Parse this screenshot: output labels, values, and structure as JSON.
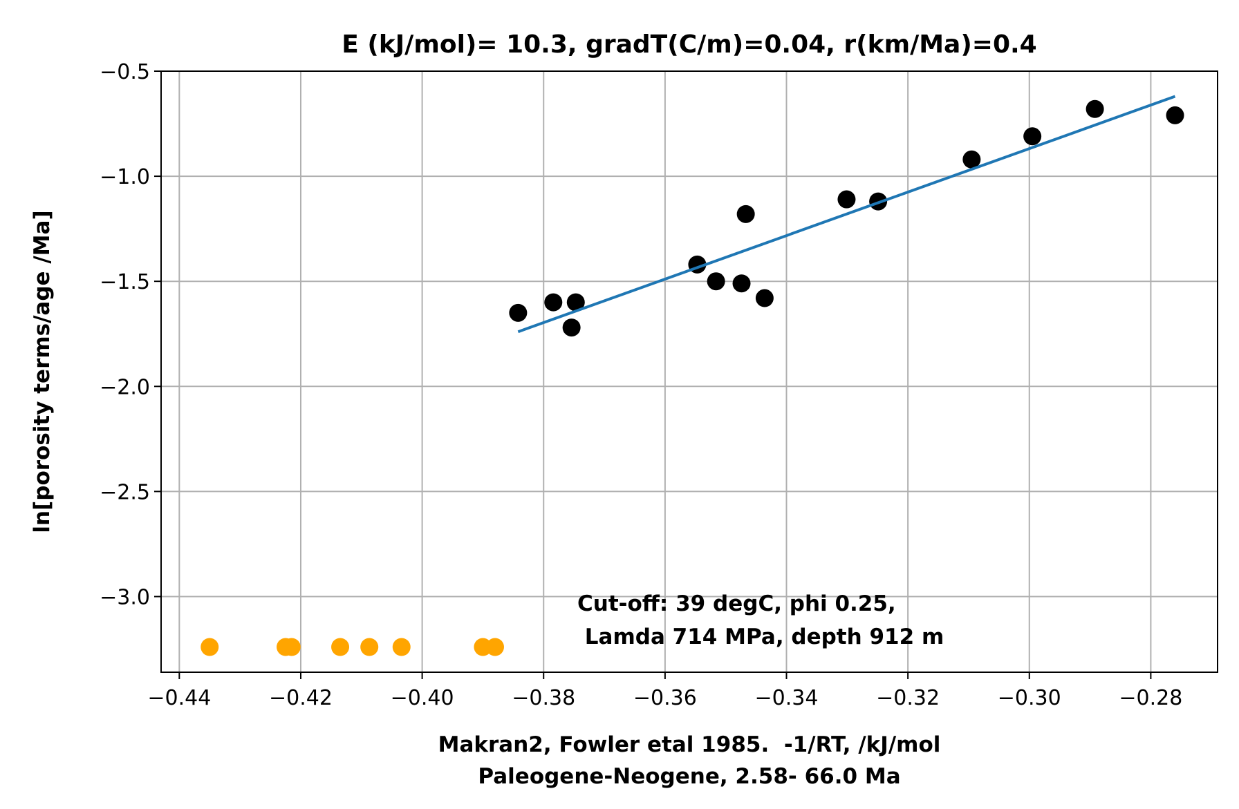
{
  "chart_data": {
    "type": "scatter",
    "title": "E (kJ/mol)= 10.3, gradT(C/m)=0.04, r(km/Ma)=0.4",
    "xlabel_line1": "Makran2, Fowler etal 1985.  -1/RT, /kJ/mol",
    "xlabel_line2": "Paleogene-Neogene, 2.58- 66.0 Ma",
    "ylabel": "ln[porosity terms/age /Ma]",
    "xlim": [
      -0.443,
      -0.269
    ],
    "ylim": [
      -3.36,
      -0.5
    ],
    "xticks": [
      -0.44,
      -0.42,
      -0.4,
      -0.38,
      -0.36,
      -0.34,
      -0.32,
      -0.3,
      -0.28
    ],
    "xtick_labels": [
      "−0.44",
      "−0.42",
      "−0.40",
      "−0.38",
      "−0.36",
      "−0.34",
      "−0.32",
      "−0.30",
      "−0.28"
    ],
    "yticks": [
      -0.5,
      -1.0,
      -1.5,
      -2.0,
      -2.5,
      -3.0
    ],
    "ytick_labels": [
      "−0.5",
      "−1.0",
      "−1.5",
      "−2.0",
      "−2.5",
      "−3.0"
    ],
    "grid": true,
    "annotation_line1": "Cut-off: 39 degC, phi 0.25,",
    "annotation_line2": " Lamda 714 MPa, depth 912 m",
    "series": [
      {
        "kind": "scatter",
        "color": "#000000",
        "points": [
          [
            -0.3842,
            -1.65
          ],
          [
            -0.3784,
            -1.6
          ],
          [
            -0.3754,
            -1.72
          ],
          [
            -0.3747,
            -1.6
          ],
          [
            -0.3547,
            -1.42
          ],
          [
            -0.3516,
            -1.5
          ],
          [
            -0.3474,
            -1.51
          ],
          [
            -0.3467,
            -1.18
          ],
          [
            -0.3436,
            -1.58
          ],
          [
            -0.3301,
            -1.11
          ],
          [
            -0.3249,
            -1.12
          ],
          [
            -0.3095,
            -0.92
          ],
          [
            -0.2995,
            -0.81
          ],
          [
            -0.2892,
            -0.68
          ],
          [
            -0.276,
            -0.71
          ]
        ]
      },
      {
        "kind": "scatter",
        "color": "#ffa500",
        "points": [
          [
            -0.435,
            -3.24
          ],
          [
            -0.4225,
            -3.24
          ],
          [
            -0.4215,
            -3.24
          ],
          [
            -0.4135,
            -3.24
          ],
          [
            -0.4087,
            -3.24
          ],
          [
            -0.4034,
            -3.24
          ],
          [
            -0.39,
            -3.24
          ],
          [
            -0.388,
            -3.24
          ]
        ]
      },
      {
        "kind": "line",
        "color": "#1f77b4",
        "points": [
          [
            -0.3842,
            -1.74
          ],
          [
            -0.276,
            -0.62
          ]
        ]
      }
    ]
  }
}
